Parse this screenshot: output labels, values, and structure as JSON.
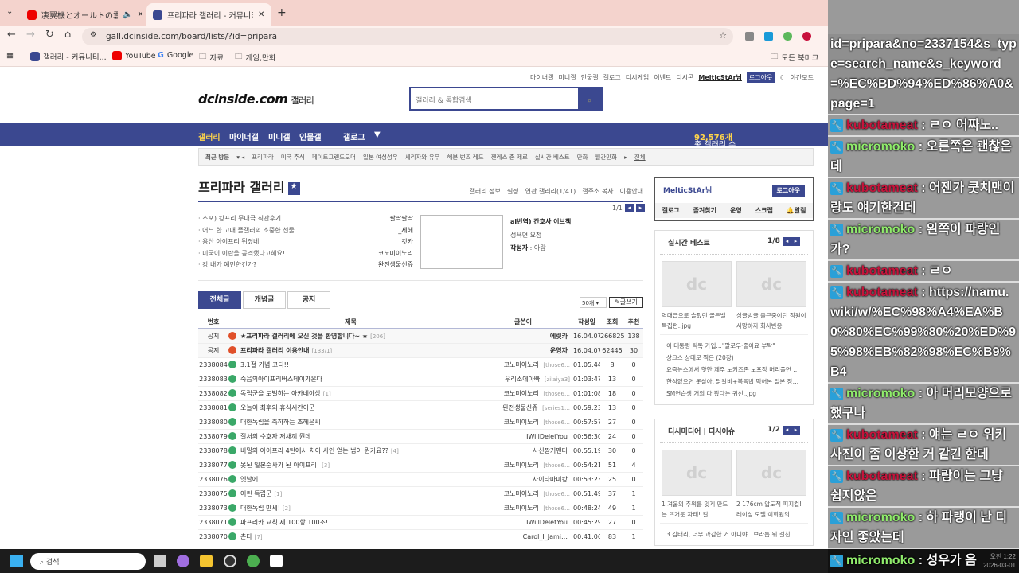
{
  "browser": {
    "tabs": [
      {
        "title": "凄翼機とオールトの雲 - YouT",
        "favicon": "youtube-icon",
        "audio": true
      },
      {
        "title": "프리파라 갤러리 - 커뮤니티 포",
        "favicon": "dcinside-icon",
        "active": true
      }
    ],
    "url": "gall.dcinside.com/board/lists/?id=pripara",
    "bookmarks": [
      "갤러리 - 커뮤니티...",
      "YouTube",
      "Google",
      "자료",
      "게임,만화"
    ],
    "all_bookmarks": "모든 북마크"
  },
  "site": {
    "top_links": [
      "마이너갤",
      "미니갤",
      "인물갤",
      "갤로그",
      "디시게임",
      "이벤트",
      "디시콘"
    ],
    "user": "MelticStAr님",
    "logout": "로그아웃",
    "night_mode": "야간모드",
    "logo": "dcinside.com",
    "logo_sub": "갤러리",
    "search_placeholder": "갤러리 & 통합검색",
    "nav": [
      "갤러리",
      "마이너갤",
      "미니갤",
      "인물갤",
      "갤로그"
    ],
    "total_label": "총 갤러리 수",
    "total_value": "92,576개",
    "recent_label": "최근 방문",
    "recent": [
      "프리파라",
      "미국 주식",
      "페이트그랜드오더",
      "일본 여성성우",
      "세리자와 유우",
      "헤븐 번즈 레드",
      "젠레스 존 제로",
      "실시간 베스트",
      "만화",
      "월간만화"
    ],
    "recent_all": "전체"
  },
  "gallery": {
    "title": "프리파라 갤러리",
    "links": [
      "갤러리 정보",
      "설정",
      "연관 갤러리(1/41)",
      "갤주소 복사",
      "이용안내"
    ],
    "concept_page": "1/1",
    "concepts": [
      {
        "title": "스포) 킹프리 무대극 직관후기",
        "author": "팔딱팔딱"
      },
      {
        "title": "어느 한 고대 플갤러의 소중한 선물",
        "author": "_세헤"
      },
      {
        "title": "용산 아이프리 뒤졌네",
        "author": "킷카"
      },
      {
        "title": "미국이 이란을 공격했다고해요!",
        "author": "코노미이노리"
      },
      {
        "title": "강 내가 예민한건가?",
        "author": "완전생물신쥬"
      }
    ],
    "feature": {
      "title": "ai번역) 간호사 이브책",
      "sub": "성욕면 요청",
      "author_label": "작성자",
      "author": "아람"
    },
    "list_tabs": [
      "전체글",
      "개념글",
      "공지"
    ],
    "per_page": "50개",
    "write": "글쓰기",
    "columns": [
      "번호",
      "제목",
      "글쓴이",
      "작성일",
      "조회",
      "추천"
    ],
    "rows": [
      {
        "no": "공지",
        "title": "★프리파라 갤러리에 오신 것을 환영합니다~ ★",
        "cmt": "[206]",
        "writer": "에릿카",
        "ip": "",
        "date": "16.04.07",
        "views": "266825",
        "rec": "138",
        "notice": true
      },
      {
        "no": "공지",
        "title": "프리파라 갤러리 이용안내",
        "cmt": "[133/1]",
        "writer": "운영자",
        "ip": "",
        "date": "16.04.07",
        "views": "62445",
        "rec": "30",
        "notice": true
      },
      {
        "no": "2338084",
        "title": "3.1절 기념 코디!!",
        "cmt": "",
        "writer": "코노미이노리",
        "ip": "[those6…",
        "date": "01:05:44",
        "views": "8",
        "rec": "0"
      },
      {
        "no": "2338083",
        "title": "죽음의아이프리버스데이가온다",
        "cmt": "",
        "writer": "우리소에아빠",
        "ip": "[zilaiya3]",
        "date": "01:03:47",
        "views": "13",
        "rec": "0"
      },
      {
        "no": "2338082",
        "title": "독립군을 토벌하는 아카네야상",
        "cmt": "[1]",
        "writer": "코노미이노리",
        "ip": "[those6…",
        "date": "01:01:08",
        "views": "18",
        "rec": "0"
      },
      {
        "no": "2338081",
        "title": "오늘이 최후의 휴식시간이군",
        "cmt": "",
        "writer": "완전생물신쥬",
        "ip": "[series1…",
        "date": "00:59:23",
        "views": "13",
        "rec": "0"
      },
      {
        "no": "2338080",
        "title": "대한독립을 축하하는 조혜은씨",
        "cmt": "",
        "writer": "코노미이노리",
        "ip": "[those6…",
        "date": "00:57:57",
        "views": "27",
        "rec": "0"
      },
      {
        "no": "2338079",
        "title": "질서의 수호자 저새끼 뭔데",
        "cmt": "",
        "writer": "IWillDeletYou",
        "ip": "",
        "date": "00:56:30",
        "views": "24",
        "rec": "0"
      },
      {
        "no": "2338078",
        "title": "비밀의 아이프리 4탄에서 치이 사인 얻는 법이 뭔가요??",
        "cmt": "[4]",
        "writer": "사신짱커맨더",
        "ip": "",
        "date": "00:55:19",
        "views": "30",
        "rec": "0"
      },
      {
        "no": "2338077",
        "title": "못된 일본순사가 된 아이프리!",
        "cmt": "[3]",
        "writer": "코노미이노리",
        "ip": "[those6…",
        "date": "00:54:21",
        "views": "51",
        "rec": "4"
      },
      {
        "no": "2338076",
        "title": "옛날에",
        "cmt": "",
        "writer": "사이타마미캉",
        "ip": "",
        "date": "00:53:23",
        "views": "25",
        "rec": "0"
      },
      {
        "no": "2338075",
        "title": "어린 독립군",
        "cmt": "[1]",
        "writer": "코노미이노리",
        "ip": "[those6…",
        "date": "00:51:49",
        "views": "37",
        "rec": "1"
      },
      {
        "no": "2338073",
        "title": "대한독립 만세!",
        "cmt": "[2]",
        "writer": "코노미이노리",
        "ip": "[those6…",
        "date": "00:48:24",
        "views": "49",
        "rec": "1"
      },
      {
        "no": "2338071",
        "title": "파프리카 교칙 제 100항 100조!",
        "cmt": "",
        "writer": "IWillDeletYou",
        "ip": "",
        "date": "00:45:29",
        "views": "27",
        "rec": "0"
      },
      {
        "no": "2338070",
        "title": "츤다",
        "cmt": "[7]",
        "writer": "Carol_I_Jami…",
        "ip": "",
        "date": "00:41:06",
        "views": "83",
        "rec": "1"
      }
    ]
  },
  "sidebar": {
    "user": "MelticStAr님",
    "logout": "로그아웃",
    "menu": [
      "갤로그",
      "즐겨찾기",
      "운영",
      "스크랩",
      "알림"
    ],
    "best": {
      "title": "실시간 베스트",
      "page": "1/8",
      "captions": [
        "역대급으로 슬펐던 골든벨 특집편..jpg",
        "싱글벙글 출근중이던 직원이 사망하자 회사반응"
      ],
      "list": [
        "이 대통령 틱톡 가입…\"팔로우·좋아요 부탁\"",
        "상크스 상태로 찍은 (20장)",
        "요즘뉴스에서 핫한 제주 노키즈존 노포장 머리풀면 …",
        "한식없으면 못살아. 닭갈비+볶음밥 먹어본 일본 장인…",
        "SM연습생 거의 다 봤다는 귀신..jpg"
      ]
    },
    "media": {
      "tab1": "디시미디어",
      "tab2": "디시이슈",
      "page": "1/2",
      "captions": [
        "1  겨울의 추위를 잊게 만드는 뜨거운 자태! 걸…",
        "2  176cm 압도적 피지컬! 레이싱 모델 이희원의…"
      ],
      "list": [
        "3  김태리, 너무 과감한 거 아니야…브라톱 위 걸친 …"
      ]
    }
  },
  "chat": {
    "url_text": "id=pripara&no=2337154&s_type=search_name&s_keyword=%EC%BD%94%ED%86%A0&page=1",
    "messages": [
      {
        "user": "kubotameat",
        "text": "ㄹㅇ 어짜노..",
        "color": "#c8143c"
      },
      {
        "user": "micromoko",
        "text": "오른쪽은 괜찮은데",
        "color": "#90ec6c"
      },
      {
        "user": "kubotameat",
        "text": "어젠가 쿳치맨이랑도 얘기한건데",
        "color": "#c8143c"
      },
      {
        "user": "micromoko",
        "text": "왼쪽이 파랑인가?",
        "color": "#90ec6c"
      },
      {
        "user": "kubotameat",
        "text": "ㄹㅇ",
        "color": "#c8143c"
      },
      {
        "user": "kubotameat",
        "text": "https://namu.wiki/w/%EC%98%A4%EA%B0%80%EC%99%80%20%ED%95%98%EB%82%98%EC%B9%B4",
        "color": "#c8143c"
      },
      {
        "user": "micromoko",
        "text": "아 머리모양으로 했구나",
        "color": "#90ec6c"
      },
      {
        "user": "kubotameat",
        "text": "얘는 ㄹㅇ 위키 사진이 좀 이상한 거 같긴 한데",
        "color": "#c8143c"
      },
      {
        "user": "kubotameat",
        "text": "파랑이는 그냥 쉽지않은",
        "color": "#c8143c"
      },
      {
        "user": "micromoko",
        "text": "하 파랭이 난 디자인 좋았는데",
        "color": "#90ec6c"
      }
    ],
    "last": {
      "user": "micromoko",
      "text": "성우가 음"
    }
  },
  "taskbar": {
    "search": "검색",
    "time": "오전 1:22",
    "date": "2026-03-01"
  }
}
